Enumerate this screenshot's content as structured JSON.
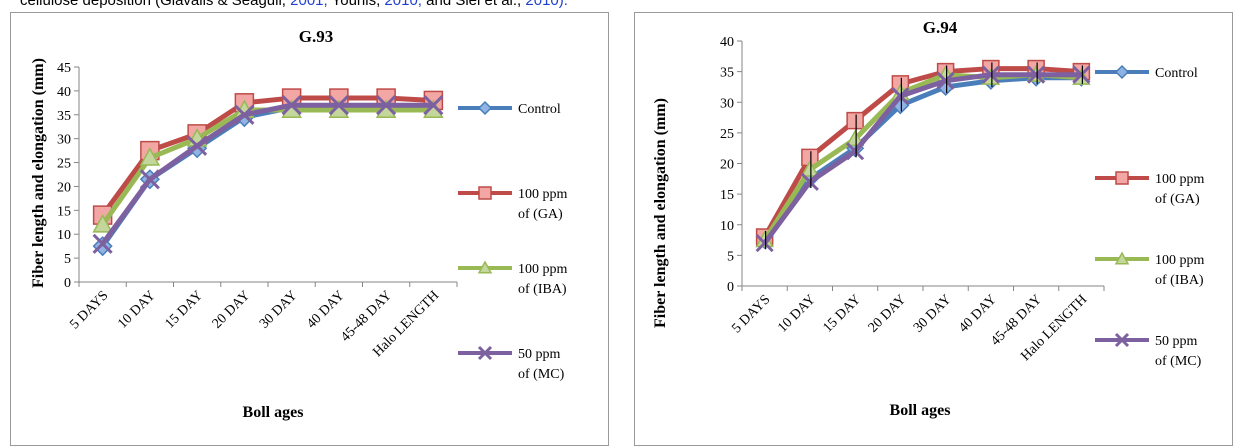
{
  "caption": {
    "text": "cellulose deposition (Giavalis & Seagull,",
    "ref1": " 2001;",
    "mid": " Younis,",
    "ref2": " 2010;",
    "tail": " and Siel et al.,",
    "ref3": " 2010)."
  },
  "colors": {
    "control": "#4a7ebb",
    "ga": "#be4b48",
    "iba": "#98b954",
    "mc": "#7d60a0"
  },
  "chart_data": [
    {
      "type": "line",
      "title": "G.93",
      "xlabel": "Boll ages",
      "ylabel": "Fiber length and elongation (mm)",
      "ylim": [
        0,
        45
      ],
      "ystep": 5,
      "grid": false,
      "legend": "right",
      "categories": [
        "5 DAYS",
        "10 DAY",
        "15 DAY",
        "20 DAY",
        "30 DAY",
        "40 DAY",
        "45-48 DAY",
        "Halo LENGTH"
      ],
      "series": [
        {
          "name": "Control",
          "marker": "diamond",
          "values": [
            7.5,
            21.5,
            28,
            34.5,
            36.5,
            36.5,
            36.5,
            36.5
          ]
        },
        {
          "name": "100 ppm of (GA)",
          "marker": "square",
          "values": [
            14,
            27.5,
            31,
            37.5,
            38.5,
            38.5,
            38.5,
            38
          ]
        },
        {
          "name": "100 ppm of (IBA)",
          "marker": "triangle",
          "values": [
            12,
            26,
            30,
            36,
            36,
            36,
            36,
            36
          ]
        },
        {
          "name": "50 ppm of (MC)",
          "marker": "x",
          "values": [
            8,
            21.5,
            28.5,
            35,
            37,
            37,
            37,
            37
          ]
        }
      ]
    },
    {
      "type": "line",
      "title": "G.94",
      "xlabel": "Boll ages",
      "ylabel": "Fiber length and elongation (mm)",
      "ylim": [
        0,
        40
      ],
      "ystep": 5,
      "grid": false,
      "legend": "right",
      "error_bars": true,
      "categories": [
        "5 DAYS",
        "10 DAY",
        "15 DAY",
        "20 DAY",
        "30 DAY",
        "40 DAY",
        "45-48 DAY",
        "Halo LENGTH"
      ],
      "series": [
        {
          "name": "Control",
          "marker": "diamond",
          "values": [
            7.5,
            17.5,
            22.5,
            29.5,
            32.5,
            33.5,
            34,
            34
          ]
        },
        {
          "name": "100 ppm of (GA)",
          "marker": "square",
          "values": [
            8,
            21,
            27,
            33,
            35,
            35.5,
            35.5,
            35
          ]
        },
        {
          "name": "100 ppm of (IBA)",
          "marker": "triangle",
          "values": [
            7.5,
            19,
            24,
            31.5,
            34.5,
            34,
            34.5,
            34
          ]
        },
        {
          "name": "50 ppm of (MC)",
          "marker": "x",
          "values": [
            7,
            17,
            22,
            31,
            33.5,
            34.5,
            34.5,
            34.5
          ]
        }
      ]
    }
  ]
}
